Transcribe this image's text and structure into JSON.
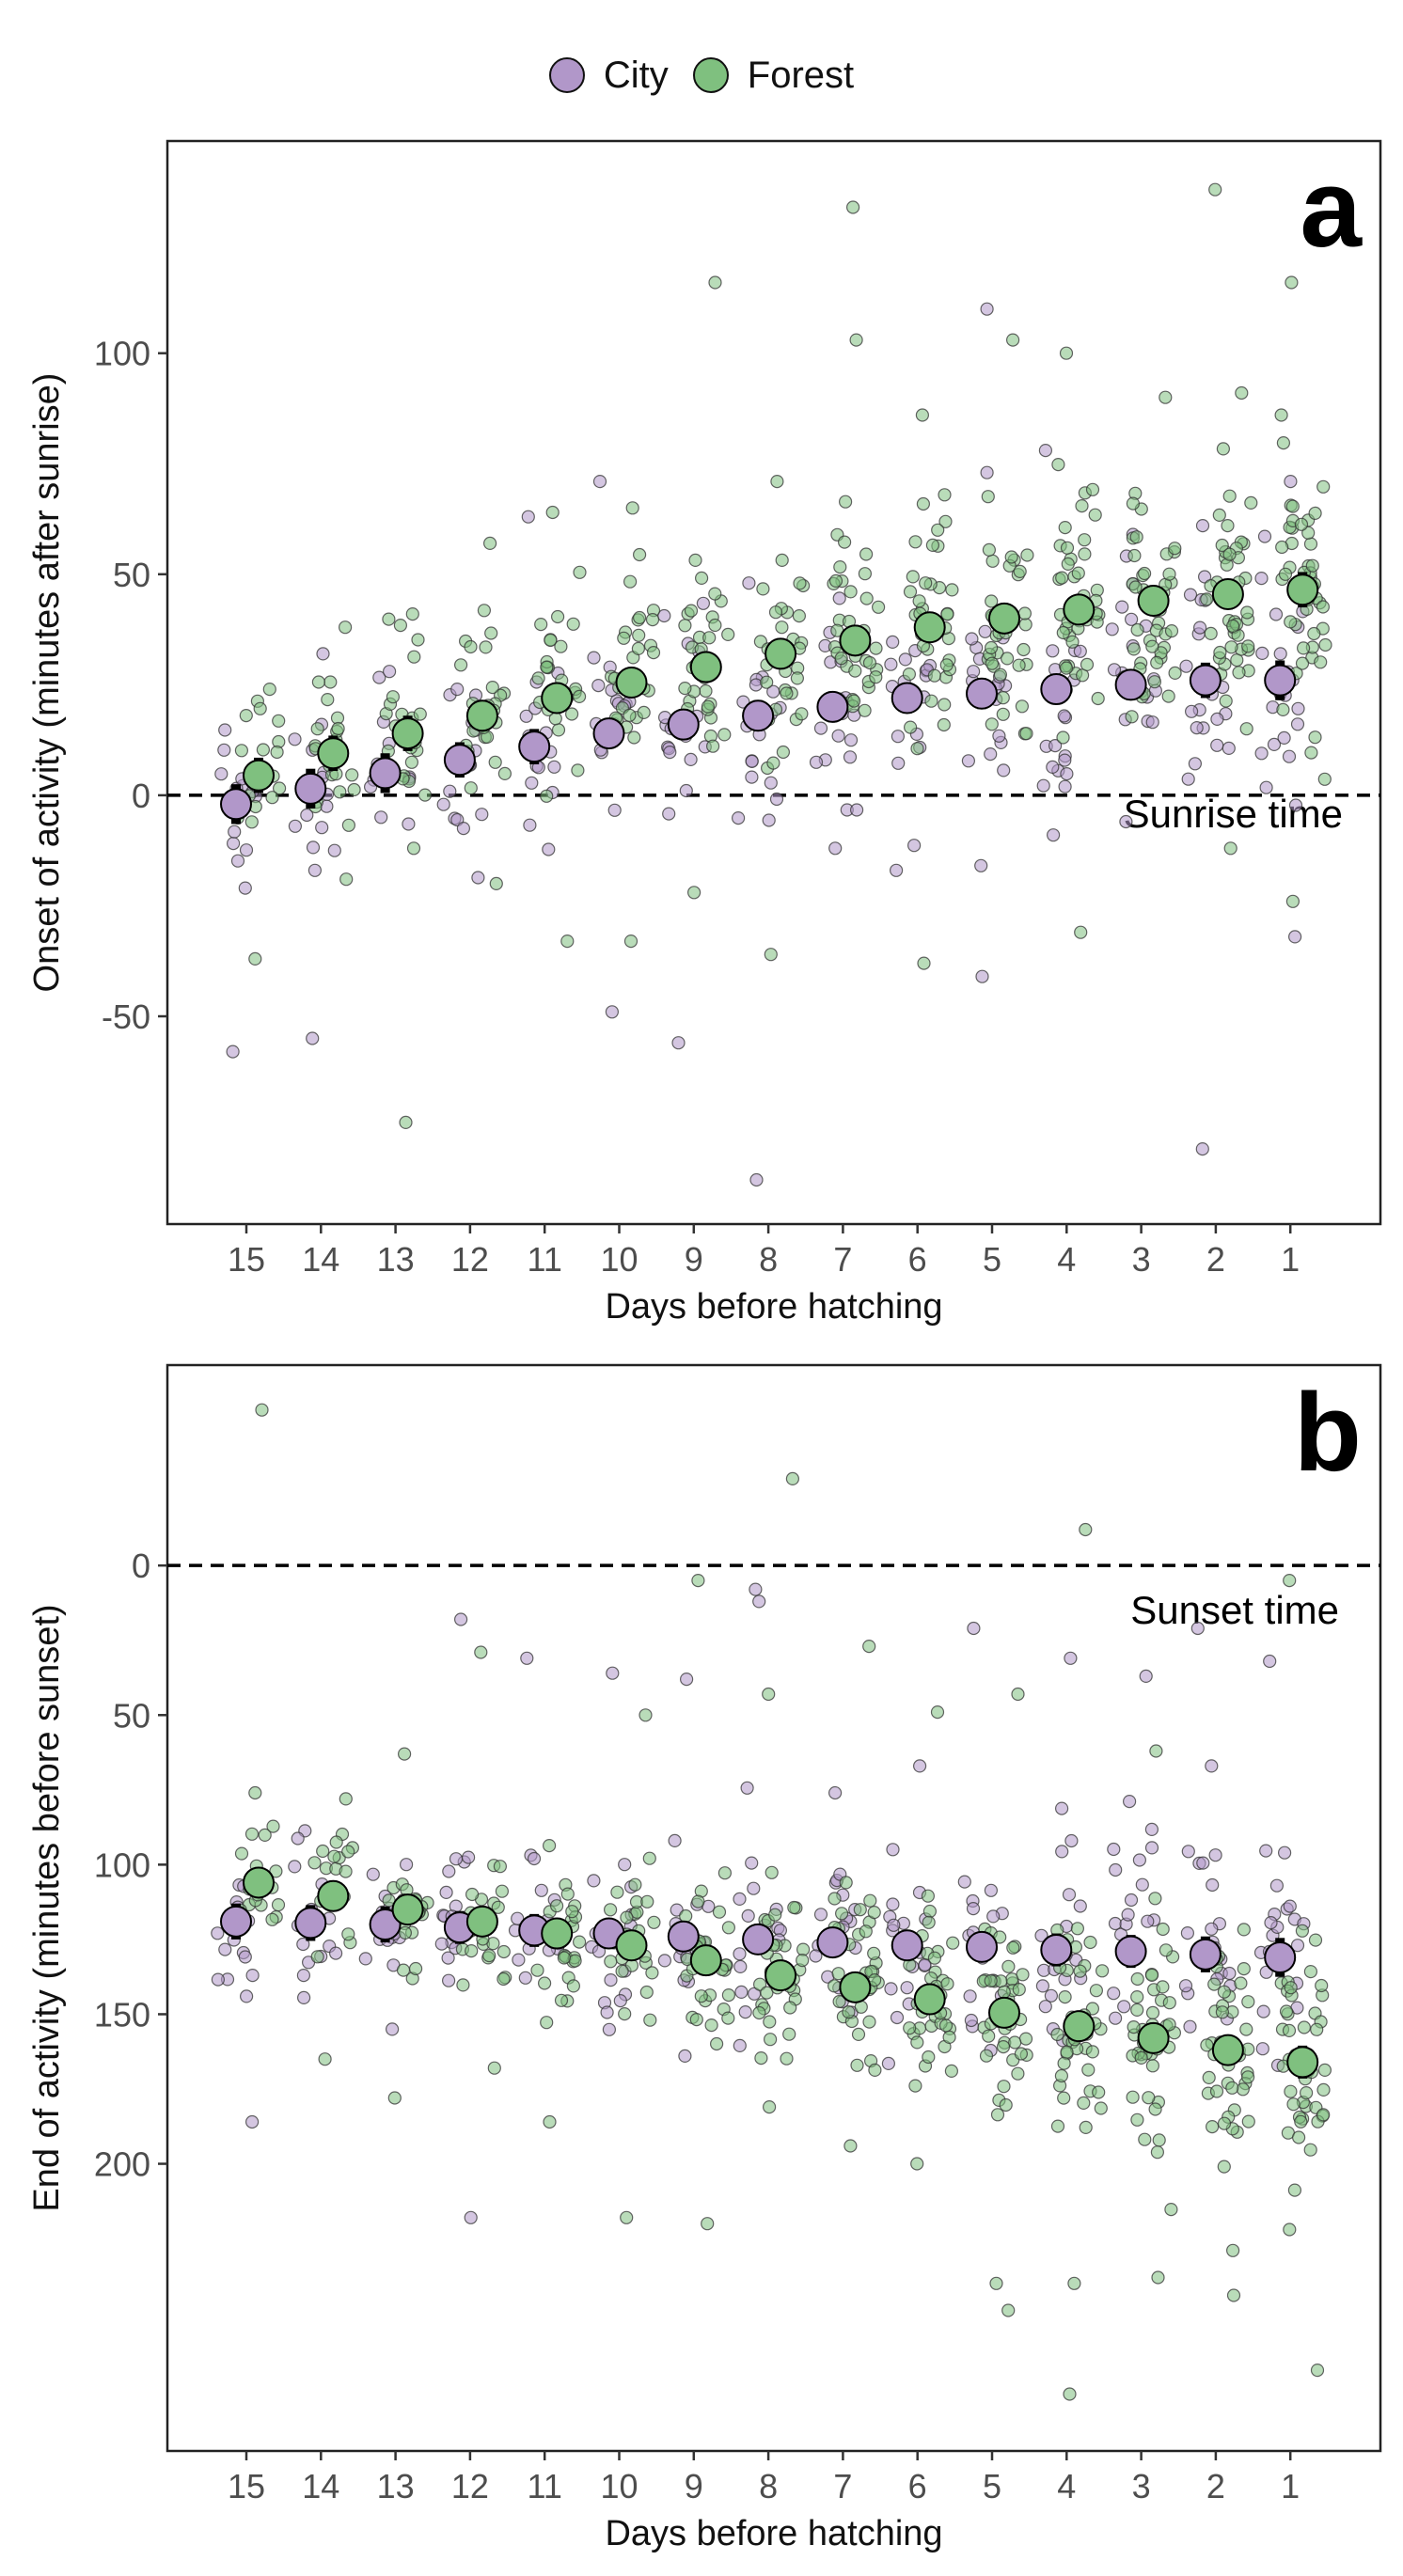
{
  "legend": {
    "items": [
      {
        "label": "City",
        "color": "#b197c9"
      },
      {
        "label": "Forest",
        "color": "#7fc07f"
      }
    ]
  },
  "chart_data": [
    {
      "type": "scatter",
      "panel_label": "a",
      "xlabel": "Days before hatching",
      "ylabel": "Onset of activity (minutes after sunrise)",
      "x_categories": [
        "15",
        "14",
        "13",
        "12",
        "11",
        "10",
        "9",
        "8",
        "7",
        "6",
        "5",
        "4",
        "3",
        "2",
        "1"
      ],
      "yticks": [
        -50,
        0,
        50,
        100
      ],
      "ylim": [
        -97,
        148
      ],
      "reference_line": {
        "y": 0,
        "label": "Sunrise time"
      },
      "series": [
        {
          "name": "City",
          "color": "#b197c9",
          "means": [
            -2,
            1.5,
            5,
            8,
            11,
            14,
            16,
            18,
            20,
            22,
            23,
            24,
            25,
            26,
            26
          ],
          "errors": [
            4.5,
            4.5,
            4.5,
            4,
            4,
            3.5,
            3.5,
            3.5,
            3.5,
            3.5,
            3.5,
            3.5,
            3.5,
            4,
            4.5
          ],
          "extreme_points": [
            [
              15,
              -58
            ],
            [
              15,
              -21
            ],
            [
              14,
              32
            ],
            [
              14,
              -55
            ],
            [
              14,
              -17
            ],
            [
              13,
              28
            ],
            [
              12,
              24
            ],
            [
              11,
              63
            ],
            [
              10,
              71
            ],
            [
              10,
              -49
            ],
            [
              9,
              -56
            ],
            [
              8,
              -87
            ],
            [
              8,
              48
            ],
            [
              7,
              -12
            ],
            [
              6,
              -17
            ],
            [
              5,
              110
            ],
            [
              5,
              73
            ],
            [
              5,
              -41
            ],
            [
              4,
              78
            ],
            [
              4,
              -9
            ],
            [
              3,
              59
            ],
            [
              2,
              -80
            ],
            [
              2,
              61
            ],
            [
              1,
              71
            ],
            [
              1,
              -32
            ]
          ]
        },
        {
          "name": "Forest",
          "color": "#7fc07f",
          "means": [
            4.5,
            9.5,
            14,
            18,
            22,
            25.5,
            29,
            32,
            35,
            38,
            40,
            42,
            44,
            45.5,
            46.5
          ],
          "errors": [
            4,
            4,
            4,
            3.5,
            3.5,
            3,
            3,
            3,
            3,
            3,
            3,
            3,
            3,
            3.5,
            4
          ],
          "extreme_points": [
            [
              15,
              -37
            ],
            [
              15,
              24
            ],
            [
              14,
              38
            ],
            [
              14,
              -19
            ],
            [
              13,
              -74
            ],
            [
              13,
              41
            ],
            [
              13,
              -12
            ],
            [
              12,
              57
            ],
            [
              12,
              -20
            ],
            [
              11,
              64
            ],
            [
              11,
              -33
            ],
            [
              10,
              65
            ],
            [
              10,
              -33
            ],
            [
              9,
              116
            ],
            [
              9,
              -22
            ],
            [
              8,
              71
            ],
            [
              8,
              -36
            ],
            [
              7,
              133
            ],
            [
              7,
              103
            ],
            [
              6,
              86
            ],
            [
              6,
              -38
            ],
            [
              5,
              103
            ],
            [
              4,
              100
            ],
            [
              4,
              -31
            ],
            [
              3,
              90
            ],
            [
              2,
              137
            ],
            [
              2,
              91
            ],
            [
              2,
              -12
            ],
            [
              1,
              116
            ],
            [
              1,
              -24
            ]
          ]
        }
      ]
    },
    {
      "type": "scatter",
      "panel_label": "b",
      "xlabel": "Days before hatching",
      "ylabel": "End of activity (minutes before sunset)",
      "x_categories": [
        "15",
        "14",
        "13",
        "12",
        "11",
        "10",
        "9",
        "8",
        "7",
        "6",
        "5",
        "4",
        "3",
        "2",
        "1"
      ],
      "yticks": [
        0,
        50,
        100,
        150,
        200
      ],
      "y_reversed": true,
      "ylim": [
        -67,
        296
      ],
      "reference_line": {
        "y": 0,
        "label": "Sunset time"
      },
      "series": [
        {
          "name": "City",
          "color": "#b197c9",
          "means": [
            119,
            119.5,
            120,
            121,
            122,
            123,
            124,
            125,
            126,
            127,
            127.5,
            128.5,
            129,
            130,
            131
          ],
          "errors": [
            6,
            6,
            6,
            5.5,
            5.5,
            5,
            5,
            5,
            5,
            5,
            5,
            5.5,
            5.5,
            6,
            6.5
          ],
          "extreme_points": [
            [
              15,
              186
            ],
            [
              15,
              137
            ],
            [
              14,
              137
            ],
            [
              13,
              155
            ],
            [
              12,
              218
            ],
            [
              12,
              18
            ],
            [
              11,
              31
            ],
            [
              10,
              36
            ],
            [
              9,
              38
            ],
            [
              8,
              12
            ],
            [
              8,
              8
            ],
            [
              7,
              76
            ],
            [
              6,
              67
            ],
            [
              5,
              21
            ],
            [
              4,
              31
            ],
            [
              3,
              37
            ],
            [
              2,
              21
            ],
            [
              2,
              67
            ],
            [
              1,
              32
            ]
          ]
        },
        {
          "name": "Forest",
          "color": "#7fc07f",
          "means": [
            106,
            110.5,
            115,
            119,
            123,
            127,
            132,
            137,
            141,
            145,
            149.5,
            154,
            158,
            162,
            166
          ],
          "errors": [
            5,
            5,
            5,
            5,
            5,
            5,
            5,
            5,
            5,
            5,
            5,
            5,
            5,
            5,
            5.5
          ],
          "extreme_points": [
            [
              15,
              -52
            ],
            [
              15,
              76
            ],
            [
              14,
              165
            ],
            [
              14,
              78
            ],
            [
              13,
              178
            ],
            [
              13,
              63
            ],
            [
              12,
              29
            ],
            [
              12,
              168
            ],
            [
              11,
              186
            ],
            [
              10,
              218
            ],
            [
              10,
              50
            ],
            [
              9,
              5
            ],
            [
              9,
              220
            ],
            [
              8,
              -29
            ],
            [
              8,
              43
            ],
            [
              7,
              27
            ],
            [
              7,
              194
            ],
            [
              6,
              49
            ],
            [
              6,
              200
            ],
            [
              5,
              240
            ],
            [
              5,
              249
            ],
            [
              5,
              43
            ],
            [
              4,
              -12
            ],
            [
              4,
              277
            ],
            [
              4,
              240
            ],
            [
              3,
              238
            ],
            [
              3,
              62
            ],
            [
              2,
              244
            ],
            [
              2,
              229
            ],
            [
              1,
              5
            ],
            [
              1,
              269
            ],
            [
              1,
              222
            ]
          ]
        }
      ]
    }
  ]
}
